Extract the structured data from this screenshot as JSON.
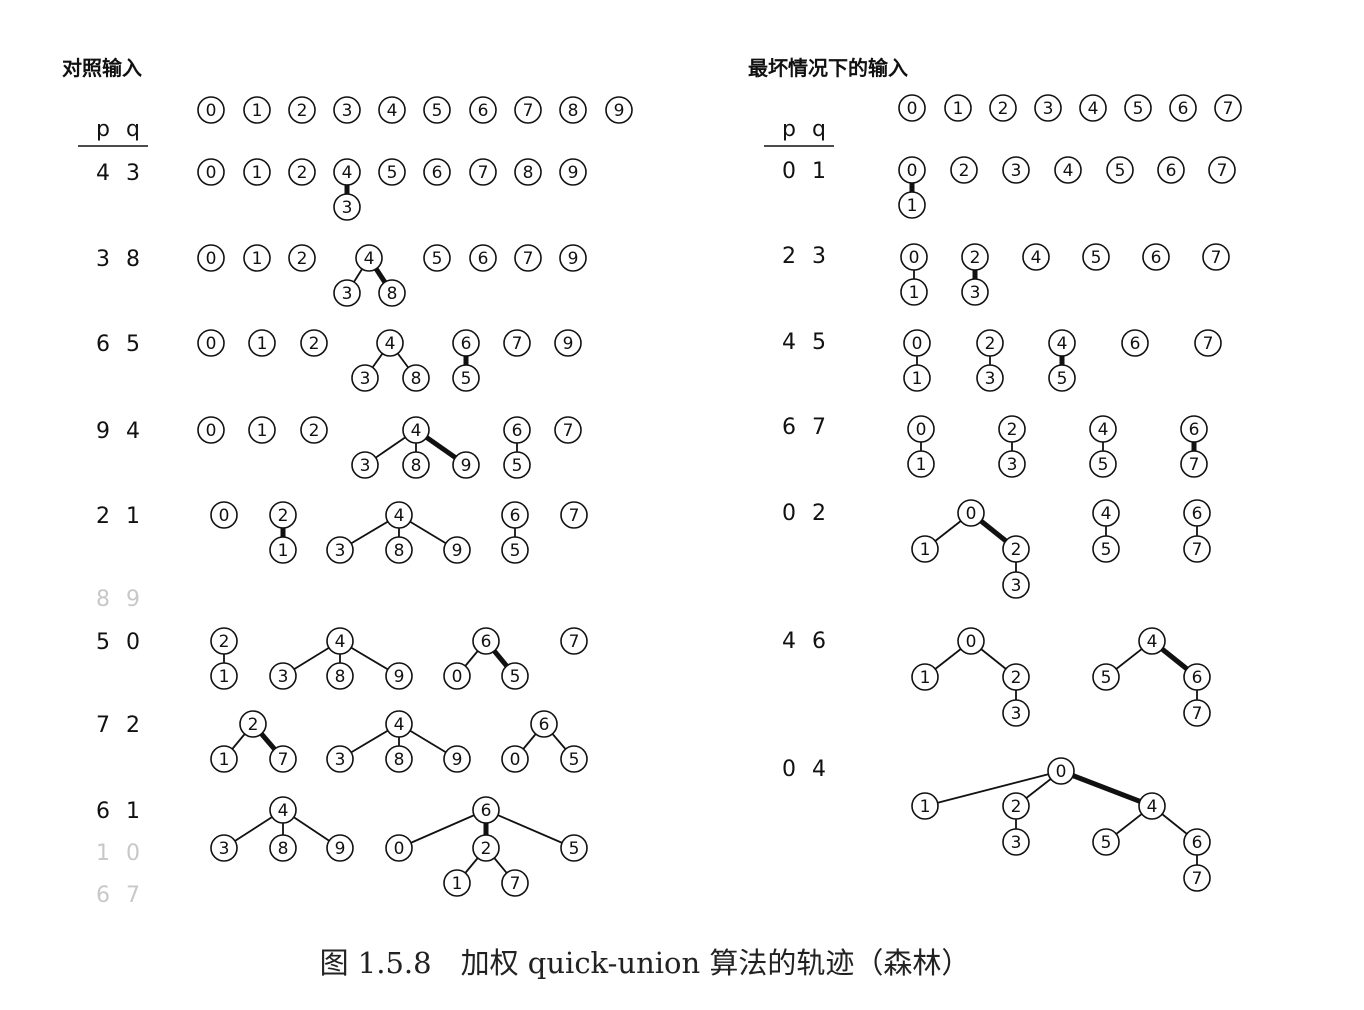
{
  "left": {
    "title": "对照输入",
    "header": {
      "p": "p",
      "q": "q"
    },
    "initial": [
      0,
      1,
      2,
      3,
      4,
      5,
      6,
      7,
      8,
      9
    ],
    "steps": [
      {
        "pair": [
          "4",
          "3"
        ],
        "faded": false,
        "nodes": [
          [
            0
          ],
          [
            1
          ],
          [
            2
          ],
          [
            4,
            3
          ],
          [
            5
          ],
          [
            6
          ],
          [
            7
          ],
          [
            8
          ],
          [
            9
          ]
        ],
        "edges": [
          [
            3,
            4,
            "thick"
          ]
        ]
      },
      {
        "pair": [
          "3",
          "8"
        ],
        "faded": false,
        "nodes": [
          [
            0
          ],
          [
            1
          ],
          [
            2
          ],
          [
            4,
            3,
            8
          ],
          [
            5
          ],
          [
            6
          ],
          [
            7
          ],
          [
            9
          ]
        ],
        "edges": [
          [
            3,
            4,
            "thin"
          ],
          [
            8,
            4,
            "thick"
          ]
        ]
      },
      {
        "pair": [
          "6",
          "5"
        ],
        "faded": false,
        "nodes": [
          [
            0
          ],
          [
            1
          ],
          [
            2
          ],
          [
            4,
            3,
            8
          ],
          [
            6,
            5
          ],
          [
            7
          ],
          [
            9
          ]
        ],
        "edges": [
          [
            3,
            4,
            "thin"
          ],
          [
            8,
            4,
            "thin"
          ],
          [
            5,
            6,
            "thick"
          ]
        ]
      },
      {
        "pair": [
          "9",
          "4"
        ],
        "faded": false,
        "nodes": [
          [
            0
          ],
          [
            1
          ],
          [
            2
          ],
          [
            4,
            3,
            8,
            9
          ],
          [
            6,
            5
          ],
          [
            7
          ]
        ],
        "edges": [
          [
            3,
            4,
            "thin"
          ],
          [
            8,
            4,
            "thin"
          ],
          [
            9,
            4,
            "thick"
          ],
          [
            5,
            6,
            "thin"
          ]
        ]
      },
      {
        "pair": [
          "2",
          "1"
        ],
        "faded": false,
        "nodes": [
          [
            0
          ],
          [
            2,
            1
          ],
          [
            4,
            3,
            8,
            9
          ],
          [
            6,
            5
          ],
          [
            7
          ]
        ],
        "edges": [
          [
            1,
            2,
            "thick"
          ],
          [
            3,
            4,
            "thin"
          ],
          [
            8,
            4,
            "thin"
          ],
          [
            9,
            4,
            "thin"
          ],
          [
            5,
            6,
            "thin"
          ]
        ]
      },
      {
        "pair": [
          "8",
          "9"
        ],
        "faded": true
      },
      {
        "pair": [
          "5",
          "0"
        ],
        "faded": false,
        "nodes": [
          [
            2,
            1
          ],
          [
            4,
            3,
            8,
            9
          ],
          [
            6,
            0,
            5
          ],
          [
            7
          ]
        ],
        "edges": [
          [
            1,
            2,
            "thin"
          ],
          [
            3,
            4,
            "thin"
          ],
          [
            8,
            4,
            "thin"
          ],
          [
            9,
            4,
            "thin"
          ],
          [
            0,
            6,
            "thin"
          ],
          [
            5,
            6,
            "thick"
          ]
        ]
      },
      {
        "pair": [
          "7",
          "2"
        ],
        "faded": false,
        "nodes": [
          [
            2,
            1,
            7
          ],
          [
            4,
            3,
            8,
            9
          ],
          [
            6,
            0,
            5
          ]
        ],
        "edges": [
          [
            1,
            2,
            "thin"
          ],
          [
            7,
            2,
            "thick"
          ],
          [
            3,
            4,
            "thin"
          ],
          [
            8,
            4,
            "thin"
          ],
          [
            9,
            4,
            "thin"
          ],
          [
            0,
            6,
            "thin"
          ],
          [
            5,
            6,
            "thin"
          ]
        ]
      },
      {
        "pair": [
          "6",
          "1"
        ],
        "faded": false,
        "nodes": [
          [
            4,
            3,
            8,
            9
          ],
          [
            6,
            0,
            2,
            5,
            1,
            7
          ]
        ],
        "edges": [
          [
            3,
            4,
            "thin"
          ],
          [
            8,
            4,
            "thin"
          ],
          [
            9,
            4,
            "thin"
          ],
          [
            0,
            6,
            "thin"
          ],
          [
            2,
            6,
            "thick"
          ],
          [
            5,
            6,
            "thin"
          ],
          [
            1,
            2,
            "thin"
          ],
          [
            7,
            2,
            "thin"
          ]
        ]
      },
      {
        "pair": [
          "1",
          "0"
        ],
        "faded": true
      },
      {
        "pair": [
          "6",
          "7"
        ],
        "faded": true
      }
    ]
  },
  "right": {
    "title": "最坏情况下的输入",
    "header": {
      "p": "p",
      "q": "q"
    },
    "initial": [
      0,
      1,
      2,
      3,
      4,
      5,
      6,
      7
    ],
    "steps": [
      {
        "pair": [
          "0",
          "1"
        ],
        "faded": false,
        "nodes": [
          [
            0,
            1
          ],
          [
            2
          ],
          [
            3
          ],
          [
            4
          ],
          [
            5
          ],
          [
            6
          ],
          [
            7
          ]
        ],
        "edges": [
          [
            1,
            0,
            "thick"
          ]
        ]
      },
      {
        "pair": [
          "2",
          "3"
        ],
        "faded": false,
        "nodes": [
          [
            0,
            1
          ],
          [
            2,
            3
          ],
          [
            4
          ],
          [
            5
          ],
          [
            6
          ],
          [
            7
          ]
        ],
        "edges": [
          [
            1,
            0,
            "thin"
          ],
          [
            3,
            2,
            "thick"
          ]
        ]
      },
      {
        "pair": [
          "4",
          "5"
        ],
        "faded": false,
        "nodes": [
          [
            0,
            1
          ],
          [
            2,
            3
          ],
          [
            4,
            5
          ],
          [
            6
          ],
          [
            7
          ]
        ],
        "edges": [
          [
            1,
            0,
            "thin"
          ],
          [
            3,
            2,
            "thin"
          ],
          [
            5,
            4,
            "thick"
          ]
        ]
      },
      {
        "pair": [
          "6",
          "7"
        ],
        "faded": false,
        "nodes": [
          [
            0,
            1
          ],
          [
            2,
            3
          ],
          [
            4,
            5
          ],
          [
            6,
            7
          ]
        ],
        "edges": [
          [
            1,
            0,
            "thin"
          ],
          [
            3,
            2,
            "thin"
          ],
          [
            5,
            4,
            "thin"
          ],
          [
            7,
            6,
            "thick"
          ]
        ]
      },
      {
        "pair": [
          "0",
          "2"
        ],
        "faded": false,
        "nodes": [
          [
            0,
            1,
            2,
            3
          ],
          [
            4,
            5
          ],
          [
            6,
            7
          ]
        ],
        "edges": [
          [
            1,
            0,
            "thin"
          ],
          [
            2,
            0,
            "thick"
          ],
          [
            3,
            2,
            "thin"
          ],
          [
            5,
            4,
            "thin"
          ],
          [
            7,
            6,
            "thin"
          ]
        ]
      },
      {
        "pair": [
          "4",
          "6"
        ],
        "faded": false,
        "nodes": [
          [
            0,
            1,
            2,
            3
          ],
          [
            4,
            5,
            6,
            7
          ]
        ],
        "edges": [
          [
            1,
            0,
            "thin"
          ],
          [
            2,
            0,
            "thin"
          ],
          [
            3,
            2,
            "thin"
          ],
          [
            5,
            4,
            "thin"
          ],
          [
            6,
            4,
            "thick"
          ],
          [
            7,
            6,
            "thin"
          ]
        ]
      },
      {
        "pair": [
          "0",
          "4"
        ],
        "faded": false,
        "nodes": [
          [
            0,
            1,
            2,
            3,
            4,
            5,
            6,
            7
          ]
        ],
        "edges": [
          [
            1,
            0,
            "thin"
          ],
          [
            2,
            0,
            "thin"
          ],
          [
            3,
            2,
            "thin"
          ],
          [
            4,
            0,
            "thick"
          ],
          [
            5,
            4,
            "thin"
          ],
          [
            6,
            4,
            "thin"
          ],
          [
            7,
            6,
            "thin"
          ]
        ]
      }
    ]
  },
  "caption": "图 1.5.8　加权 quick-union 算法的轨迹（森林）"
}
